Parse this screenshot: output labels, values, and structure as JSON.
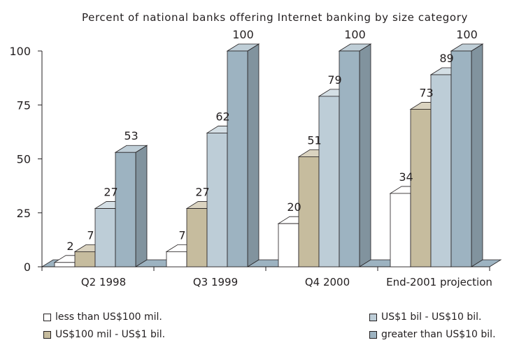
{
  "chart_data": {
    "type": "bar",
    "title": "Percent of national banks offering Internet banking by size category",
    "categories": [
      "Q2 1998",
      "Q3 1999",
      "Q4 2000",
      "End-2001 projection"
    ],
    "series": [
      {
        "name": "less than US$100 mil.",
        "values": [
          2,
          7,
          20,
          34
        ],
        "color": "#ffffff"
      },
      {
        "name": "US$100 mil - US$1 bil.",
        "values": [
          7,
          27,
          51,
          73
        ],
        "color": "#c6bc9e"
      },
      {
        "name": "US$1 bil - US$10 bil.",
        "values": [
          27,
          62,
          79,
          89
        ],
        "color": "#bdcdd7"
      },
      {
        "name": "greater than US$10 bil.",
        "values": [
          53,
          100,
          100,
          100
        ],
        "color": "#9db3c1"
      }
    ],
    "ylim": [
      0,
      100
    ],
    "yticks": [
      "0",
      "25",
      "50",
      "75",
      "100"
    ],
    "xlabel": "",
    "ylabel": "",
    "grid": false,
    "legend_position": "bottom",
    "style": "3d-bar"
  }
}
